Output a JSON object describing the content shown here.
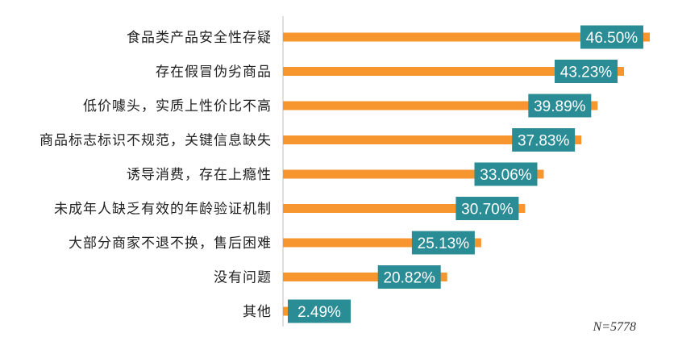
{
  "chart_data": {
    "type": "bar",
    "orientation": "horizontal",
    "categories": [
      "食品类产品安全性存疑",
      "存在假冒伪劣商品",
      "低价噱头，实质上性价比不高",
      "商品标志标识不规范，关键信息缺失",
      "诱导消费，存在上瘾性",
      "未成年人缺乏有效的年龄验证机制",
      "大部分商家不退不换，售后困难",
      "没有问题",
      "其他"
    ],
    "values": [
      46.5,
      43.23,
      39.89,
      37.83,
      33.06,
      30.7,
      25.13,
      20.82,
      2.49
    ],
    "value_labels": [
      "46.50%",
      "43.23%",
      "39.89%",
      "37.83%",
      "33.06%",
      "30.70%",
      "25.13%",
      "20.82%",
      "2.49%"
    ],
    "xlim": [
      0,
      50
    ],
    "grid": false,
    "bar_color": "#F7962F",
    "label_box_color": "#2A8C95",
    "axis_color": "#BFBFBF",
    "note": "N=5778"
  }
}
